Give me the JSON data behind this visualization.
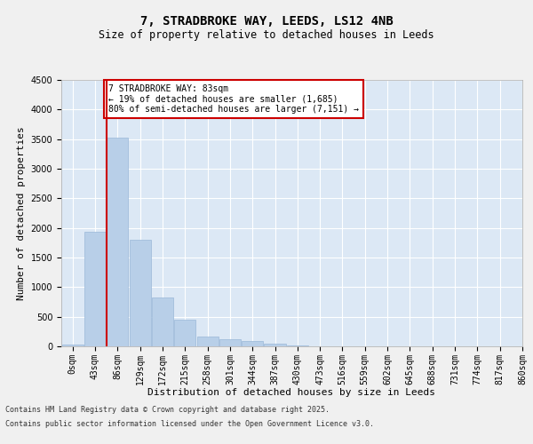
{
  "title_line1": "7, STRADBROKE WAY, LEEDS, LS12 4NB",
  "title_line2": "Size of property relative to detached houses in Leeds",
  "xlabel": "Distribution of detached houses by size in Leeds",
  "ylabel": "Number of detached properties",
  "bar_values": [
    30,
    1940,
    3530,
    1800,
    820,
    450,
    170,
    120,
    90,
    50,
    10,
    5,
    3,
    2,
    1,
    1,
    0,
    0,
    0,
    0
  ],
  "bar_labels": [
    "0sqm",
    "43sqm",
    "86sqm",
    "129sqm",
    "172sqm",
    "215sqm",
    "258sqm",
    "301sqm",
    "344sqm",
    "387sqm",
    "430sqm",
    "473sqm",
    "516sqm",
    "559sqm",
    "602sqm",
    "645sqm",
    "688sqm",
    "731sqm",
    "774sqm",
    "817sqm",
    "860sqm"
  ],
  "bar_color": "#b8cfe8",
  "bar_edge_color": "#9ab8d8",
  "background_color": "#dce8f5",
  "grid_color": "#ffffff",
  "vline_x": 1.5,
  "vline_color": "#cc0000",
  "ylim": [
    0,
    4500
  ],
  "yticks": [
    0,
    500,
    1000,
    1500,
    2000,
    2500,
    3000,
    3500,
    4000,
    4500
  ],
  "annotation_text": "7 STRADBROKE WAY: 83sqm\n← 19% of detached houses are smaller (1,685)\n80% of semi-detached houses are larger (7,151) →",
  "annotation_box_color": "#ffffff",
  "annotation_box_edge": "#cc0000",
  "footer_line1": "Contains HM Land Registry data © Crown copyright and database right 2025.",
  "footer_line2": "Contains public sector information licensed under the Open Government Licence v3.0.",
  "fig_width": 6.0,
  "fig_height": 5.0,
  "title1_fontsize": 10,
  "title2_fontsize": 8.5,
  "ylabel_fontsize": 8,
  "xlabel_fontsize": 8,
  "tick_fontsize": 7,
  "annot_fontsize": 7
}
